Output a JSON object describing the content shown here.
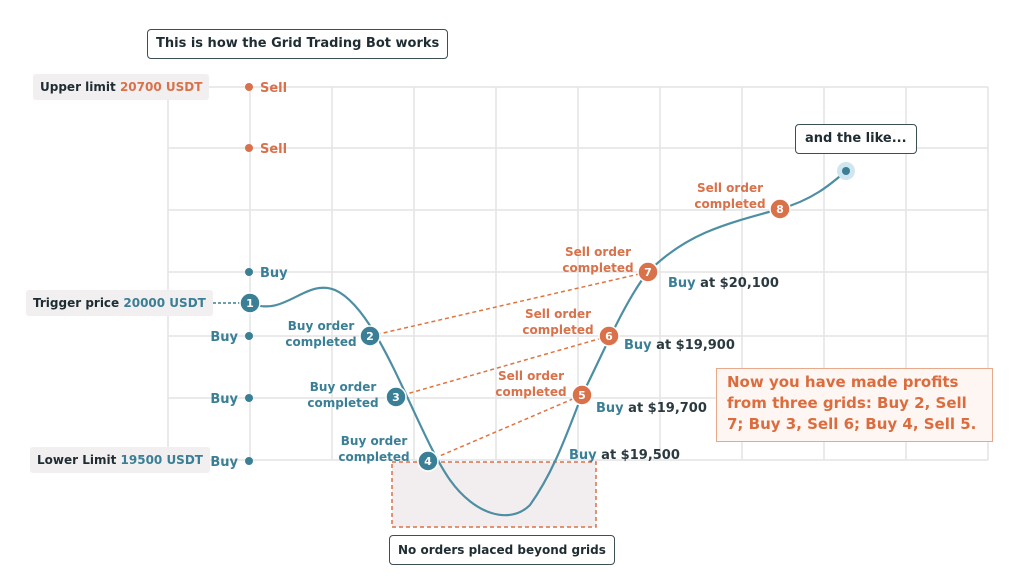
{
  "title": "This is how the Grid Trading Bot works",
  "labels": {
    "upper_prefix": "Upper limit",
    "upper_value": "20700 USDT",
    "trigger_prefix": "Trigger price",
    "trigger_value": "20000 USDT",
    "lower_prefix": "Lower Limit",
    "lower_value": "19500 USDT"
  },
  "grid_orders": [
    "Sell",
    "Sell",
    "Buy",
    "Buy",
    "Buy",
    "Buy"
  ],
  "points": [
    "1",
    "2",
    "3",
    "4",
    "5",
    "6",
    "7",
    "8"
  ],
  "buy_completed_line1": "Buy order",
  "buy_completed_line2": "completed",
  "sell_completed_line1": "Sell order",
  "sell_completed_line2": "completed",
  "buy_at": [
    {
      "word": "Buy",
      "price": "at $19,500"
    },
    {
      "word": "Buy",
      "price": "at $19,700"
    },
    {
      "word": "Buy",
      "price": "at $19,900"
    },
    {
      "word": "Buy",
      "price": "at $20,100"
    }
  ],
  "and_the_like": "and the like...",
  "profit_note": "Now you have made profits from three grids: Buy 2, Sell 7; Buy 3, Sell 6; Buy 4, Sell 5.",
  "beyond_grids": "No orders placed beyond grids",
  "colors": {
    "teal": "#3a7f96",
    "orange": "#d9714a",
    "grid": "#e4e4e4",
    "shade": "#f2eeef"
  }
}
